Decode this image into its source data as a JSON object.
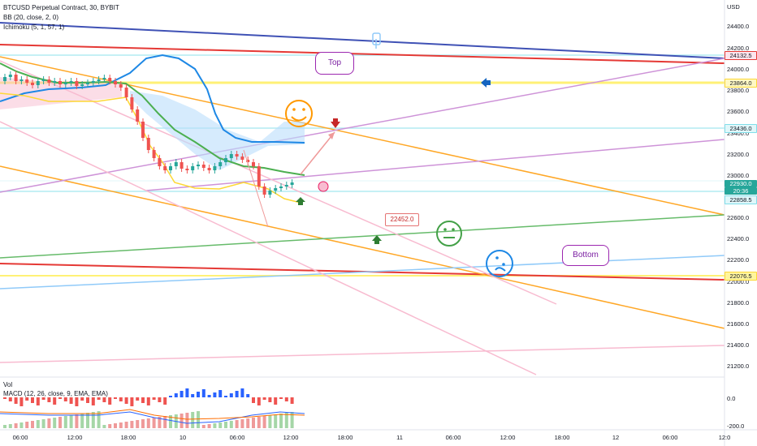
{
  "header": {
    "symbol": "BTCUSD Perpetual Contract, 30, BYBIT",
    "bb": "BB (20, close, 2, 0)",
    "ichimoku": "Ichimoku (5, 1, 57, 1)"
  },
  "indicator_panel": {
    "vol_label": "Vol",
    "macd_label": "MACD (12, 26, close, 9, EMA, EMA)",
    "axis": [
      "0.0",
      "-200.0"
    ]
  },
  "price_axis": {
    "currency": "USD",
    "labels": [
      "24400.0",
      "24200.0",
      "24000.0",
      "23800.0",
      "23600.0",
      "23400.0",
      "23200.0",
      "23000.0",
      "22600.0",
      "22400.0",
      "22200.0",
      "22000.0",
      "21800.0",
      "21600.0",
      "21400.0",
      "21200.0"
    ],
    "tags": {
      "red_line": "24132.5",
      "yellow_line": "23864.0",
      "cyan_line": "23436.0",
      "current_price": "22930.0",
      "countdown": "20:36",
      "blue_line": "22858.5",
      "bottom_yellow": "22076.5"
    }
  },
  "time_axis": [
    "06:00",
    "12:00",
    "18:00",
    "10",
    "06:00",
    "12:00",
    "18:00",
    "11",
    "06:00",
    "12:00",
    "18:00",
    "12",
    "06:00",
    "12:0"
  ],
  "annotations": {
    "top_label": "Top",
    "bottom_label": "Bottom",
    "price_note": "22452.0"
  },
  "colors": {
    "red": "#e53935",
    "yellow": "#ffeb3b",
    "orange": "#ffa726",
    "purple": "#ce93d8",
    "green": "#4caf50",
    "blue_line": "#1e88e5",
    "navy": "#3f51b5",
    "pink": "#f8bbd0",
    "cloud": "#bbdefb",
    "up_candle": "#26a69a",
    "down_candle": "#ef5350"
  }
}
